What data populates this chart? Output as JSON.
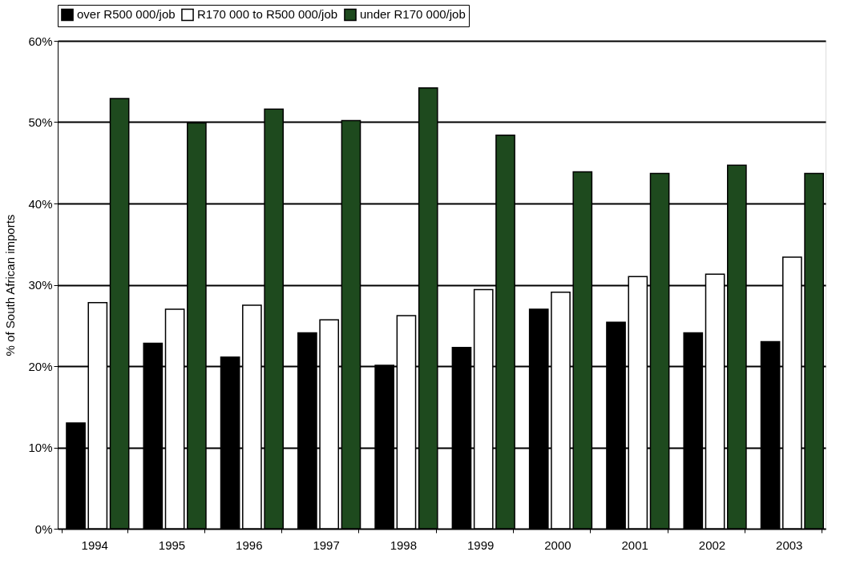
{
  "chart_data": {
    "type": "bar",
    "ylabel": "% of South African imports",
    "categories": [
      "1994",
      "1995",
      "1996",
      "1997",
      "1998",
      "1999",
      "2000",
      "2001",
      "2002",
      "2003"
    ],
    "series": [
      {
        "name": "over R500 000/job",
        "color": "#000000",
        "values": [
          13.0,
          22.8,
          21.1,
          24.1,
          20.1,
          22.3,
          27.0,
          25.4,
          24.1,
          23.0
        ]
      },
      {
        "name": "R170 000 to R500 000/job",
        "color": "#ffffff",
        "values": [
          27.8,
          27.0,
          27.5,
          25.7,
          26.2,
          29.4,
          29.1,
          31.0,
          31.3,
          33.4
        ]
      },
      {
        "name": "under R170 000/job",
        "color": "#1e4a1e",
        "values": [
          52.9,
          49.9,
          51.6,
          50.2,
          54.2,
          48.4,
          43.9,
          43.7,
          44.7,
          43.7
        ]
      }
    ],
    "ylim": [
      0,
      60
    ],
    "yticks": [
      {
        "value": 0,
        "label": "0%"
      },
      {
        "value": 10,
        "label": "10%"
      },
      {
        "value": 20,
        "label": "20%"
      },
      {
        "value": 30,
        "label": "30%"
      },
      {
        "value": 40,
        "label": "40%"
      },
      {
        "value": 50,
        "label": "50%"
      },
      {
        "value": 60,
        "label": "60%"
      }
    ],
    "grid": "y",
    "legend": "top"
  }
}
